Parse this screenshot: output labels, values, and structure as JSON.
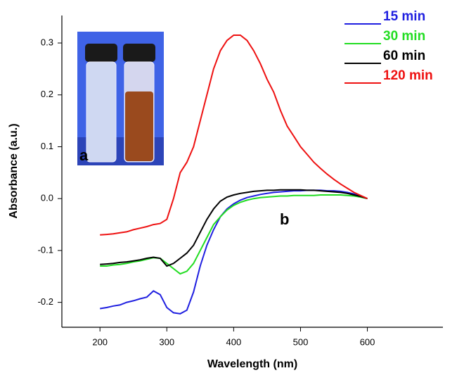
{
  "chart_data": {
    "type": "line",
    "x_label": "Wavelength (nm)",
    "y_label": "Absorbance (a.u.)",
    "x": [
      200,
      210,
      220,
      230,
      240,
      250,
      260,
      270,
      280,
      290,
      300,
      310,
      320,
      330,
      340,
      350,
      360,
      370,
      380,
      390,
      400,
      410,
      420,
      430,
      440,
      450,
      460,
      470,
      480,
      490,
      500,
      510,
      520,
      530,
      540,
      550,
      560,
      570,
      580,
      590,
      600
    ],
    "series": [
      {
        "name": "15 min",
        "color": "#1f1fe0",
        "values": [
          -0.212,
          -0.21,
          -0.207,
          -0.205,
          -0.2,
          -0.197,
          -0.193,
          -0.19,
          -0.178,
          -0.185,
          -0.21,
          -0.22,
          -0.222,
          -0.215,
          -0.18,
          -0.13,
          -0.09,
          -0.06,
          -0.035,
          -0.02,
          -0.01,
          -0.003,
          0.002,
          0.005,
          0.008,
          0.01,
          0.012,
          0.013,
          0.014,
          0.015,
          0.015,
          0.016,
          0.016,
          0.016,
          0.015,
          0.015,
          0.014,
          0.012,
          0.009,
          0.005,
          0.0
        ]
      },
      {
        "name": "30 min",
        "color": "#22dd22",
        "values": [
          -0.13,
          -0.13,
          -0.128,
          -0.127,
          -0.125,
          -0.122,
          -0.12,
          -0.117,
          -0.114,
          -0.115,
          -0.125,
          -0.135,
          -0.145,
          -0.14,
          -0.125,
          -0.1,
          -0.075,
          -0.05,
          -0.035,
          -0.022,
          -0.013,
          -0.007,
          -0.003,
          0.0,
          0.002,
          0.003,
          0.004,
          0.005,
          0.005,
          0.006,
          0.006,
          0.006,
          0.006,
          0.007,
          0.007,
          0.007,
          0.007,
          0.006,
          0.005,
          0.003,
          0.0
        ]
      },
      {
        "name": "60 min",
        "color": "#000000",
        "values": [
          -0.127,
          -0.126,
          -0.125,
          -0.123,
          -0.122,
          -0.12,
          -0.118,
          -0.115,
          -0.113,
          -0.115,
          -0.13,
          -0.125,
          -0.115,
          -0.105,
          -0.09,
          -0.065,
          -0.04,
          -0.02,
          -0.005,
          0.003,
          0.007,
          0.01,
          0.012,
          0.014,
          0.015,
          0.016,
          0.016,
          0.017,
          0.017,
          0.017,
          0.017,
          0.016,
          0.016,
          0.015,
          0.014,
          0.013,
          0.012,
          0.01,
          0.007,
          0.004,
          0.0
        ]
      },
      {
        "name": "120 min",
        "color": "#ee1111",
        "values": [
          -0.07,
          -0.069,
          -0.068,
          -0.066,
          -0.064,
          -0.06,
          -0.057,
          -0.054,
          -0.05,
          -0.048,
          -0.04,
          0.0,
          0.05,
          0.07,
          0.1,
          0.15,
          0.2,
          0.25,
          0.285,
          0.305,
          0.315,
          0.315,
          0.305,
          0.285,
          0.26,
          0.23,
          0.205,
          0.17,
          0.14,
          0.12,
          0.1,
          0.085,
          0.07,
          0.058,
          0.047,
          0.037,
          0.028,
          0.02,
          0.012,
          0.006,
          0.0
        ]
      }
    ],
    "xlim": [
      143,
      713
    ],
    "xticks": [
      200,
      300,
      400,
      500,
      600
    ],
    "ylim": [
      -0.248,
      0.353
    ],
    "yticks": [
      -0.2,
      -0.1,
      {
        "value": 0,
        "label": "0.0"
      },
      0.1,
      0.2,
      0.3
    ],
    "grid": false,
    "legend": "top-right",
    "annotations": [
      "a",
      "b"
    ]
  }
}
